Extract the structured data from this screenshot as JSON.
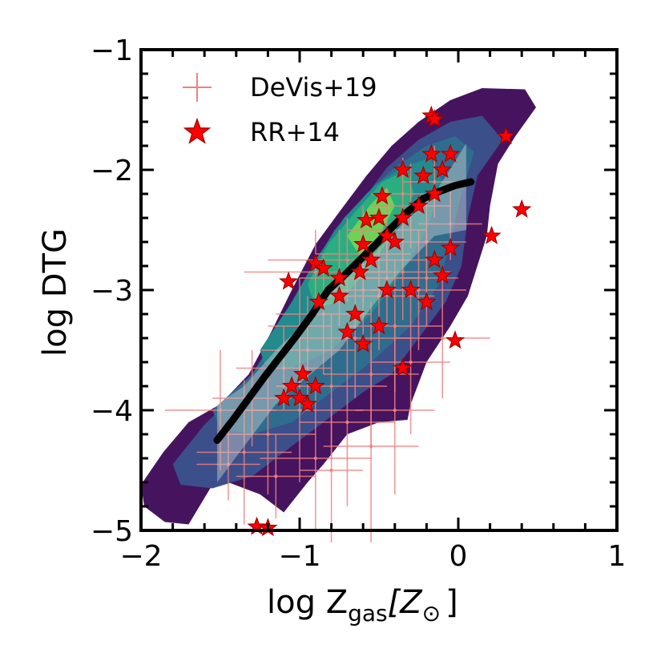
{
  "chart_data": {
    "type": "scatter",
    "title": "",
    "xlabel_main": "log Z",
    "xlabel_sub": "gas",
    "xlabel_bracket_open": "[Z",
    "xlabel_sun": "⊙",
    "xlabel_bracket_close": "]",
    "ylabel": "log DTG",
    "xlim": [
      -2,
      1
    ],
    "ylim": [
      -5,
      -1
    ],
    "xticks": [
      -2,
      -1,
      0,
      1
    ],
    "yticks": [
      -5,
      -4,
      -3,
      -2,
      -1
    ],
    "xtick_labels": [
      "−2",
      "−1",
      "0",
      "1"
    ],
    "ytick_labels": [
      "−5",
      "−4",
      "−3",
      "−2",
      "−1"
    ],
    "legend_position": "top-left",
    "legend": [
      {
        "label": "DeVis+19",
        "marker": "plus",
        "color": "#f08080"
      },
      {
        "label": "RR+14",
        "marker": "star",
        "color": "#ff0000"
      }
    ],
    "density_colors": [
      "#46145f",
      "#3b4f8a",
      "#2f6d8e",
      "#238a8d",
      "#29af7f",
      "#72d057"
    ],
    "density_layers": [
      [
        [
          -2.0,
          -4.62
        ],
        [
          -1.86,
          -4.35
        ],
        [
          -1.7,
          -4.1
        ],
        [
          -1.5,
          -3.95
        ],
        [
          -1.32,
          -3.7
        ],
        [
          -1.18,
          -3.35
        ],
        [
          -1.05,
          -3.0
        ],
        [
          -0.9,
          -2.62
        ],
        [
          -0.75,
          -2.35
        ],
        [
          -0.58,
          -2.05
        ],
        [
          -0.42,
          -1.8
        ],
        [
          -0.25,
          -1.6
        ],
        [
          -0.05,
          -1.42
        ],
        [
          0.15,
          -1.32
        ],
        [
          0.42,
          -1.33
        ],
        [
          0.49,
          -1.48
        ],
        [
          0.36,
          -1.72
        ],
        [
          0.25,
          -1.95
        ],
        [
          0.2,
          -2.3
        ],
        [
          0.18,
          -2.55
        ],
        [
          0.12,
          -2.8
        ],
        [
          0.06,
          -3.05
        ],
        [
          -0.05,
          -3.3
        ],
        [
          -0.2,
          -3.6
        ],
        [
          -0.3,
          -3.95
        ],
        [
          -0.32,
          -4.08
        ],
        [
          -0.5,
          -4.1
        ],
        [
          -0.7,
          -4.2
        ],
        [
          -0.85,
          -4.45
        ],
        [
          -0.95,
          -4.6
        ],
        [
          -1.1,
          -4.85
        ],
        [
          -1.25,
          -4.7
        ],
        [
          -1.45,
          -4.6
        ],
        [
          -1.55,
          -4.62
        ],
        [
          -1.7,
          -4.95
        ],
        [
          -1.85,
          -4.93
        ],
        [
          -1.98,
          -4.8
        ]
      ],
      [
        [
          -1.8,
          -4.45
        ],
        [
          -1.6,
          -4.12
        ],
        [
          -1.35,
          -3.8
        ],
        [
          -1.12,
          -3.35
        ],
        [
          -0.95,
          -2.95
        ],
        [
          -0.8,
          -2.6
        ],
        [
          -0.6,
          -2.25
        ],
        [
          -0.45,
          -1.98
        ],
        [
          -0.25,
          -1.75
        ],
        [
          -0.05,
          -1.6
        ],
        [
          0.15,
          -1.55
        ],
        [
          0.28,
          -1.75
        ],
        [
          0.12,
          -2.05
        ],
        [
          0.06,
          -2.4
        ],
        [
          0.02,
          -2.8
        ],
        [
          -0.08,
          -3.1
        ],
        [
          -0.25,
          -3.4
        ],
        [
          -0.42,
          -3.7
        ],
        [
          -0.6,
          -3.85
        ],
        [
          -0.85,
          -4.1
        ],
        [
          -1.1,
          -4.35
        ],
        [
          -1.3,
          -4.55
        ],
        [
          -1.55,
          -4.65
        ],
        [
          -1.75,
          -4.62
        ]
      ],
      [
        [
          -1.55,
          -4.0
        ],
        [
          -1.3,
          -3.7
        ],
        [
          -1.1,
          -3.28
        ],
        [
          -0.95,
          -2.88
        ],
        [
          -0.78,
          -2.5
        ],
        [
          -0.58,
          -2.2
        ],
        [
          -0.4,
          -1.98
        ],
        [
          -0.2,
          -1.8
        ],
        [
          -0.02,
          -1.72
        ],
        [
          0.1,
          -1.85
        ],
        [
          0.02,
          -2.2
        ],
        [
          -0.05,
          -2.6
        ],
        [
          -0.12,
          -2.95
        ],
        [
          -0.3,
          -3.3
        ],
        [
          -0.55,
          -3.6
        ],
        [
          -0.8,
          -3.85
        ],
        [
          -1.05,
          -4.1
        ],
        [
          -1.3,
          -4.2
        ],
        [
          -1.5,
          -4.15
        ]
      ],
      [
        [
          -1.25,
          -3.5
        ],
        [
          -1.05,
          -3.1
        ],
        [
          -0.9,
          -2.75
        ],
        [
          -0.72,
          -2.4
        ],
        [
          -0.52,
          -2.12
        ],
        [
          -0.35,
          -1.98
        ],
        [
          -0.18,
          -1.9
        ],
        [
          -0.1,
          -2.1
        ],
        [
          -0.2,
          -2.5
        ],
        [
          -0.35,
          -2.85
        ],
        [
          -0.55,
          -3.2
        ],
        [
          -0.8,
          -3.5
        ],
        [
          -1.05,
          -3.65
        ],
        [
          -1.22,
          -3.62
        ]
      ],
      [
        [
          -0.95,
          -2.95
        ],
        [
          -0.82,
          -2.62
        ],
        [
          -0.65,
          -2.35
        ],
        [
          -0.48,
          -2.1
        ],
        [
          -0.32,
          -2.0
        ],
        [
          -0.28,
          -2.2
        ],
        [
          -0.4,
          -2.5
        ],
        [
          -0.55,
          -2.8
        ],
        [
          -0.75,
          -3.1
        ],
        [
          -0.9,
          -3.15
        ]
      ],
      [
        [
          -0.7,
          -2.55
        ],
        [
          -0.56,
          -2.3
        ],
        [
          -0.45,
          -2.15
        ],
        [
          -0.4,
          -2.3
        ],
        [
          -0.5,
          -2.55
        ],
        [
          -0.62,
          -2.72
        ]
      ]
    ],
    "median_line": {
      "x": [
        -1.52,
        -1.42,
        -1.32,
        -1.22,
        -1.12,
        -1.02,
        -0.92,
        -0.82,
        -0.72,
        -0.62,
        -0.52,
        -0.42,
        -0.32,
        -0.22,
        -0.12,
        -0.02,
        0.08
      ],
      "y": [
        -4.25,
        -4.08,
        -3.9,
        -3.72,
        -3.55,
        -3.38,
        -3.2,
        -3.0,
        -2.88,
        -2.75,
        -2.62,
        -2.48,
        -2.35,
        -2.24,
        -2.18,
        -2.13,
        -2.1
      ]
    },
    "scatter_band": {
      "x": [
        -1.52,
        -1.35,
        -1.15,
        -0.95,
        -0.75,
        -0.55,
        -0.35,
        -0.15,
        0.05,
        0.05,
        -0.15,
        -0.35,
        -0.55,
        -0.75,
        -0.95,
        -1.15,
        -1.35,
        -1.52
      ],
      "y": [
        -3.95,
        -3.8,
        -3.5,
        -3.25,
        -2.95,
        -2.72,
        -2.45,
        -2.2,
        -1.78,
        -2.5,
        -2.55,
        -2.82,
        -3.15,
        -3.5,
        -3.72,
        -3.95,
        -4.3,
        -4.6
      ]
    },
    "series": [
      {
        "name": "RR+14",
        "points": [
          [
            -0.17,
            -1.55
          ],
          [
            -0.15,
            -1.58
          ],
          [
            -0.17,
            -1.87
          ],
          [
            -0.05,
            -1.87
          ],
          [
            0.3,
            -1.72
          ],
          [
            0.4,
            -2.33
          ],
          [
            0.21,
            -2.55
          ],
          [
            -0.1,
            -2.0
          ],
          [
            -0.35,
            -2.0
          ],
          [
            -0.22,
            -2.05
          ],
          [
            -0.48,
            -2.22
          ],
          [
            -0.5,
            -2.4
          ],
          [
            -0.58,
            -2.42
          ],
          [
            -0.45,
            -2.55
          ],
          [
            -0.35,
            -2.4
          ],
          [
            -0.4,
            -2.6
          ],
          [
            -0.6,
            -2.62
          ],
          [
            -0.55,
            -2.75
          ],
          [
            -0.62,
            -2.85
          ],
          [
            -0.9,
            -2.78
          ],
          [
            -0.85,
            -2.82
          ],
          [
            -1.07,
            -2.93
          ],
          [
            -0.75,
            -2.9
          ],
          [
            -0.88,
            -3.1
          ],
          [
            -0.75,
            -3.05
          ],
          [
            -0.65,
            -3.2
          ],
          [
            -0.45,
            -3.0
          ],
          [
            -0.2,
            -3.1
          ],
          [
            -0.1,
            -2.88
          ],
          [
            -0.05,
            -2.65
          ],
          [
            -0.15,
            -2.75
          ],
          [
            -0.3,
            -3.0
          ],
          [
            -0.7,
            -3.35
          ],
          [
            -0.6,
            -3.45
          ],
          [
            -0.35,
            -3.65
          ],
          [
            -0.02,
            -3.42
          ],
          [
            -0.9,
            -3.8
          ],
          [
            -0.98,
            -3.7
          ],
          [
            -1.0,
            -3.9
          ],
          [
            -0.95,
            -3.95
          ],
          [
            -1.05,
            -3.8
          ],
          [
            -1.1,
            -3.9
          ],
          [
            -0.5,
            -3.3
          ],
          [
            -0.25,
            -2.3
          ],
          [
            -0.15,
            -2.2
          ],
          [
            -1.27,
            -4.97
          ],
          [
            -1.2,
            -4.98
          ]
        ]
      },
      {
        "name": "DeVis+19",
        "points": [
          [
            -1.5,
            -4.0,
            0.35,
            0.5
          ],
          [
            -1.35,
            -4.35,
            0.3,
            0.6
          ],
          [
            -1.3,
            -3.9,
            0.25,
            0.4
          ],
          [
            -1.2,
            -4.2,
            0.3,
            0.5
          ],
          [
            -1.1,
            -3.65,
            0.3,
            0.35
          ],
          [
            -1.0,
            -4.0,
            0.4,
            0.6
          ],
          [
            -0.95,
            -3.5,
            0.3,
            0.45
          ],
          [
            -0.9,
            -4.4,
            0.35,
            0.6
          ],
          [
            -0.85,
            -3.2,
            0.3,
            0.5
          ],
          [
            -0.8,
            -3.8,
            0.35,
            0.6
          ],
          [
            -0.75,
            -2.9,
            0.25,
            0.4
          ],
          [
            -0.7,
            -4.1,
            0.3,
            0.7
          ],
          [
            -0.65,
            -3.4,
            0.35,
            0.5
          ],
          [
            -0.6,
            -2.7,
            0.3,
            0.4
          ],
          [
            -0.55,
            -3.7,
            0.3,
            0.6
          ],
          [
            -0.5,
            -3.05,
            0.35,
            0.45
          ],
          [
            -0.45,
            -2.5,
            0.25,
            0.35
          ],
          [
            -0.4,
            -3.3,
            0.3,
            0.55
          ],
          [
            -0.35,
            -2.85,
            0.3,
            0.4
          ],
          [
            -0.3,
            -2.3,
            0.25,
            0.35
          ],
          [
            -0.25,
            -3.0,
            0.3,
            0.5
          ],
          [
            -0.2,
            -2.6,
            0.25,
            0.4
          ],
          [
            -0.15,
            -2.1,
            0.2,
            0.3
          ],
          [
            -0.1,
            -3.4,
            0.3,
            0.5
          ],
          [
            -0.05,
            -2.45,
            0.2,
            0.3
          ],
          [
            -1.45,
            -4.45,
            0.2,
            0.3
          ],
          [
            -1.15,
            -4.55,
            0.25,
            0.35
          ],
          [
            -0.9,
            -2.85,
            0.45,
            0.35
          ],
          [
            -0.7,
            -2.75,
            0.5,
            0.35
          ],
          [
            -0.55,
            -4.3,
            0.3,
            0.8
          ],
          [
            -0.4,
            -4.0,
            0.25,
            0.7
          ],
          [
            -0.3,
            -3.6,
            0.25,
            0.6
          ],
          [
            -0.6,
            -3.0,
            0.25,
            0.4
          ],
          [
            -0.45,
            -2.9,
            0.2,
            0.4
          ],
          [
            -0.35,
            -2.2,
            0.2,
            0.3
          ],
          [
            -0.8,
            -4.5,
            0.2,
            0.6
          ],
          [
            -1.0,
            -3.3,
            0.2,
            0.4
          ],
          [
            -0.2,
            -2.9,
            0.2,
            0.4
          ]
        ]
      }
    ]
  }
}
